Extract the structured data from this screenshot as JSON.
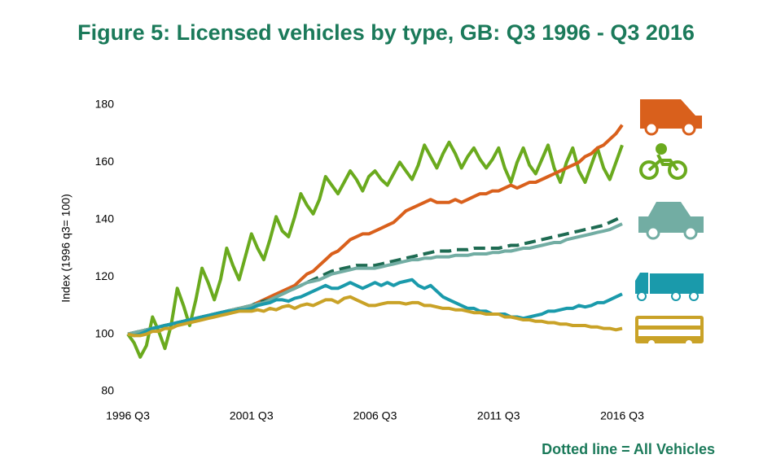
{
  "chart_data": {
    "type": "line",
    "title": "Figure 5: Licensed vehicles by type, GB:  Q3 1996 - Q3 2016",
    "y_label": "Index (1996 q3= 100)",
    "annotation": "Dotted line = All Vehicles",
    "ylim": [
      80,
      180
    ],
    "yticks": [
      80,
      100,
      120,
      140,
      160,
      180
    ],
    "grid": false,
    "categories": [
      "1996 Q3",
      null,
      null,
      null,
      null,
      null,
      null,
      null,
      null,
      null,
      null,
      null,
      null,
      null,
      null,
      null,
      null,
      null,
      null,
      null,
      "2001 Q3",
      null,
      null,
      null,
      null,
      null,
      null,
      null,
      null,
      null,
      null,
      null,
      null,
      null,
      null,
      null,
      null,
      null,
      null,
      null,
      "2006 Q3",
      null,
      null,
      null,
      null,
      null,
      null,
      null,
      null,
      null,
      null,
      null,
      null,
      null,
      null,
      null,
      null,
      null,
      null,
      null,
      "2011 Q3",
      null,
      null,
      null,
      null,
      null,
      null,
      null,
      null,
      null,
      null,
      null,
      null,
      null,
      null,
      null,
      null,
      null,
      null,
      null,
      "2016 Q3"
    ],
    "series": [
      {
        "color": "#6aaa1e",
        "line_style": "solid",
        "values": [
          100,
          97,
          92,
          96,
          106,
          101,
          95,
          103,
          116,
          110,
          103,
          112,
          123,
          118,
          112,
          119,
          130,
          124,
          119,
          127,
          135,
          130,
          126,
          133,
          141,
          136,
          134,
          141,
          149,
          145,
          142,
          147,
          155,
          152,
          149,
          153,
          157,
          154,
          150,
          155,
          157,
          154,
          152,
          156,
          160,
          157,
          154,
          159,
          166,
          162,
          158,
          163,
          167,
          163,
          158,
          162,
          165,
          161,
          158,
          161,
          165,
          158,
          153,
          160,
          165,
          159,
          156,
          161,
          166,
          158,
          153,
          160,
          165,
          157,
          153,
          159,
          165,
          158,
          154,
          160,
          166
        ]
      },
      {
        "color": "#d9601c",
        "line_style": "solid",
        "values": [
          100,
          100.5,
          101,
          101.5,
          102,
          102.5,
          103,
          103.5,
          104,
          104.5,
          105,
          105.5,
          106,
          106.5,
          107,
          107.5,
          108,
          108.5,
          109,
          109.5,
          110,
          111,
          112,
          113,
          114,
          115,
          116,
          117,
          119,
          121,
          122,
          124,
          126,
          128,
          129,
          131,
          133,
          134,
          135,
          135,
          136,
          137,
          138,
          139,
          141,
          143,
          144,
          145,
          146,
          147,
          146,
          146,
          146,
          147,
          146,
          147,
          148,
          149,
          149,
          150,
          150,
          151,
          152,
          151,
          152,
          153,
          153,
          154,
          155,
          156,
          157,
          158,
          159,
          160,
          162,
          163,
          165,
          166,
          168,
          170,
          173
        ]
      },
      {
        "color": "#1e6b52",
        "line_style": "dashed",
        "values": [
          100,
          100.5,
          101,
          101.5,
          102,
          102.5,
          103,
          103.5,
          104,
          104.5,
          105,
          105.5,
          106,
          106.5,
          107,
          107.5,
          108,
          108.5,
          109,
          109.5,
          110,
          111,
          111.5,
          112,
          113,
          114,
          115,
          116,
          117,
          118,
          119,
          120,
          121,
          122,
          122.5,
          123,
          123.5,
          124,
          124,
          124,
          124,
          124.5,
          125,
          125.5,
          126,
          126.5,
          127,
          127.5,
          128,
          128.5,
          129,
          129,
          129,
          129.5,
          129.5,
          129.5,
          130,
          130,
          130,
          130,
          130,
          130.5,
          131,
          131,
          131.5,
          132,
          132.5,
          133,
          133.5,
          134,
          134.5,
          135,
          135.5,
          136,
          136.5,
          137,
          137.5,
          138,
          139,
          140,
          141
        ]
      },
      {
        "color": "#72ada3",
        "line_style": "solid",
        "values": [
          100,
          100.5,
          101,
          101.5,
          102,
          102.5,
          103,
          103.5,
          104,
          104.5,
          105,
          105.5,
          106,
          106.5,
          107,
          107.5,
          108,
          108.5,
          109,
          109.5,
          110,
          110.5,
          111,
          112,
          113,
          114,
          115,
          116,
          117,
          118,
          118.5,
          119,
          120,
          121,
          121.5,
          122,
          122.5,
          123,
          123,
          123,
          123,
          123.5,
          124,
          124.5,
          125,
          125.5,
          126,
          126,
          126.5,
          126.5,
          127,
          127,
          127,
          127.5,
          127.5,
          127.5,
          128,
          128,
          128,
          128.5,
          128.5,
          129,
          129,
          129.5,
          130,
          130,
          130.5,
          131,
          131.5,
          132,
          132,
          133,
          133.5,
          134,
          134.5,
          135,
          135.5,
          136,
          136.5,
          137.5,
          138.5
        ]
      },
      {
        "color": "#1a9aab",
        "line_style": "solid",
        "values": [
          100,
          99.5,
          100,
          101,
          102,
          102.5,
          103,
          103.5,
          104,
          104.5,
          105,
          105.5,
          106,
          106.5,
          107,
          107.5,
          108,
          108,
          108.5,
          108.5,
          109,
          110,
          110.5,
          111,
          112,
          112,
          111.5,
          112.5,
          113,
          114,
          115,
          116,
          117,
          116,
          116,
          117,
          118,
          117,
          116,
          117,
          118,
          117,
          118,
          117,
          118,
          118.5,
          119,
          117,
          116,
          117,
          115,
          113,
          112,
          111,
          110,
          109,
          109,
          108,
          108,
          107,
          107,
          107,
          106,
          106,
          105.5,
          106,
          106.5,
          107,
          108,
          108,
          108.5,
          109,
          109,
          110,
          109.5,
          110,
          111,
          111,
          112,
          113,
          114
        ]
      },
      {
        "color": "#c9a227",
        "line_style": "solid",
        "values": [
          100,
          99.5,
          99.5,
          100,
          101,
          101,
          102,
          102,
          103,
          103.5,
          104,
          104.5,
          105,
          105.5,
          106,
          106.5,
          107,
          107.5,
          108,
          108,
          108,
          108.5,
          108,
          109,
          108.5,
          109.5,
          110,
          109,
          110,
          110.5,
          110,
          111,
          112,
          112,
          111,
          112.5,
          113,
          112,
          111,
          110,
          110,
          110.5,
          111,
          111,
          111,
          110.5,
          111,
          111,
          110,
          110,
          109.5,
          109,
          109,
          108.5,
          108.5,
          108,
          107.5,
          107.5,
          107,
          107,
          107,
          106,
          106,
          105.5,
          105,
          105,
          104.5,
          104.5,
          104,
          104,
          103.5,
          103.5,
          103,
          103,
          103,
          102.5,
          102.5,
          102,
          102,
          101.5,
          102
        ]
      }
    ]
  }
}
